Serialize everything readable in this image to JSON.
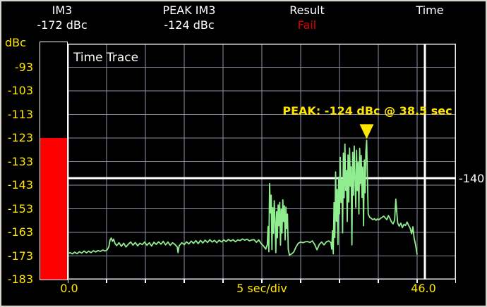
{
  "header": {
    "columns": [
      {
        "label": "IM3",
        "value": "-172 dBc",
        "status": "normal"
      },
      {
        "label": "PEAK IM3",
        "value": "-124 dBc",
        "status": "normal"
      },
      {
        "label": "Result",
        "value": "Fail",
        "status": "fail"
      },
      {
        "label": "Time",
        "value": "",
        "status": "normal"
      }
    ]
  },
  "y_axis": {
    "unit": "dBc",
    "labels": [
      "-93",
      "-103",
      "-113",
      "-123",
      "-133",
      "-143",
      "-153",
      "-163",
      "-173",
      "-183"
    ]
  },
  "x_axis": {
    "start": "0.0",
    "div_label": "5 sec/div",
    "end": "46.0"
  },
  "bar_meter": {
    "value_dbc": -124,
    "range_top": -83,
    "range_bottom": -183
  },
  "plot": {
    "title": "Time Trace",
    "limit_label": "-140",
    "limit_value": -140,
    "peak_annotation": "PEAK: -124 dBc @ 38.5 sec",
    "peak_time_sec": 38.5,
    "peak_value_dbc": -124,
    "cursor_time_sec": 46.0
  },
  "colors": {
    "bg": "#000000",
    "frame": "#d8d5cc",
    "yellow": "#ffe600",
    "trace_green": "#90ee90",
    "bar_red": "#ff0000",
    "fail_red": "#e00000",
    "grid": "#8a92a4",
    "white": "#ffffff"
  },
  "chart_data": {
    "type": "line",
    "title": "Time Trace",
    "xlabel": "5 sec/div",
    "ylabel": "dBc",
    "xlim": [
      0,
      50
    ],
    "ylim": [
      -183,
      -83
    ],
    "x_divisions": 10,
    "y_divisions": 10,
    "grid": true,
    "limit_line_dbc": -140,
    "points": [
      [
        0.0,
        -172.0
      ],
      [
        0.3,
        -171.6
      ],
      [
        0.6,
        -172.1
      ],
      [
        0.9,
        -171.4
      ],
      [
        1.2,
        -172.0
      ],
      [
        1.5,
        -171.2
      ],
      [
        1.8,
        -171.8
      ],
      [
        2.1,
        -170.9
      ],
      [
        2.4,
        -171.7
      ],
      [
        2.7,
        -171.0
      ],
      [
        3.0,
        -171.6
      ],
      [
        3.3,
        -170.8
      ],
      [
        3.6,
        -171.3
      ],
      [
        3.9,
        -170.7
      ],
      [
        4.2,
        -171.1
      ],
      [
        4.5,
        -170.5
      ],
      [
        4.8,
        -170.9
      ],
      [
        5.1,
        -170.3
      ],
      [
        5.3,
        -169.0
      ],
      [
        5.45,
        -166.2
      ],
      [
        5.6,
        -165.4
      ],
      [
        5.75,
        -166.8
      ],
      [
        5.9,
        -165.9
      ],
      [
        6.1,
        -167.8
      ],
      [
        6.3,
        -168.6
      ],
      [
        6.6,
        -167.4
      ],
      [
        6.9,
        -168.9
      ],
      [
        7.2,
        -167.6
      ],
      [
        7.5,
        -169.2
      ],
      [
        7.8,
        -168.0
      ],
      [
        8.1,
        -167.1
      ],
      [
        8.4,
        -168.4
      ],
      [
        8.7,
        -167.3
      ],
      [
        9.0,
        -168.7
      ],
      [
        9.3,
        -167.6
      ],
      [
        9.6,
        -168.2
      ],
      [
        9.9,
        -167.1
      ],
      [
        10.2,
        -168.5
      ],
      [
        10.5,
        -167.4
      ],
      [
        10.8,
        -168.8
      ],
      [
        11.1,
        -167.2
      ],
      [
        11.4,
        -168.1
      ],
      [
        11.7,
        -167.0
      ],
      [
        12.0,
        -168.0
      ],
      [
        12.3,
        -166.8
      ],
      [
        12.6,
        -168.3
      ],
      [
        12.9,
        -167.1
      ],
      [
        13.2,
        -168.5
      ],
      [
        13.5,
        -167.4
      ],
      [
        13.8,
        -168.1
      ],
      [
        14.1,
        -169.2
      ],
      [
        14.2,
        -171.6
      ],
      [
        14.35,
        -168.7
      ],
      [
        14.7,
        -167.4
      ],
      [
        15.0,
        -168.2
      ],
      [
        15.3,
        -167.0
      ],
      [
        15.6,
        -167.9
      ],
      [
        15.9,
        -166.7
      ],
      [
        16.2,
        -167.7
      ],
      [
        16.5,
        -166.5
      ],
      [
        16.8,
        -167.8
      ],
      [
        17.1,
        -166.4
      ],
      [
        17.4,
        -167.5
      ],
      [
        17.7,
        -166.3
      ],
      [
        18.0,
        -167.3
      ],
      [
        18.3,
        -166.1
      ],
      [
        18.6,
        -167.1
      ],
      [
        18.9,
        -166.4
      ],
      [
        19.2,
        -167.4
      ],
      [
        19.5,
        -166.3
      ],
      [
        19.8,
        -167.1
      ],
      [
        20.1,
        -166.2
      ],
      [
        20.4,
        -166.9
      ],
      [
        20.7,
        -166.0
      ],
      [
        21.0,
        -166.7
      ],
      [
        21.3,
        -166.1
      ],
      [
        21.6,
        -167.0
      ],
      [
        21.9,
        -166.2
      ],
      [
        22.2,
        -166.5
      ],
      [
        22.5,
        -165.8
      ],
      [
        22.8,
        -166.3
      ],
      [
        23.1,
        -165.9
      ],
      [
        23.4,
        -166.6
      ],
      [
        23.7,
        -166.2
      ],
      [
        24.0,
        -166.1
      ],
      [
        24.3,
        -167.2
      ],
      [
        24.6,
        -166.2
      ],
      [
        24.9,
        -167.7
      ],
      [
        25.2,
        -168.7
      ],
      [
        25.5,
        -170.1
      ],
      [
        25.7,
        -168.2
      ],
      [
        25.8,
        -160.5
      ],
      [
        25.9,
        -171.2
      ],
      [
        26.0,
        -142.3
      ],
      [
        26.1,
        -154.8
      ],
      [
        26.2,
        -147.2
      ],
      [
        26.3,
        -170.3
      ],
      [
        26.4,
        -152.5
      ],
      [
        26.5,
        -163.4
      ],
      [
        26.6,
        -149.6
      ],
      [
        26.7,
        -158.3
      ],
      [
        26.8,
        -171.6
      ],
      [
        26.9,
        -154.2
      ],
      [
        27.0,
        -165.3
      ],
      [
        27.1,
        -151.4
      ],
      [
        27.2,
        -160.2
      ],
      [
        27.3,
        -150.3
      ],
      [
        27.4,
        -168.4
      ],
      [
        27.5,
        -153.2
      ],
      [
        27.6,
        -163.3
      ],
      [
        27.7,
        -149.2
      ],
      [
        27.8,
        -158.4
      ],
      [
        27.9,
        -151.7
      ],
      [
        28.0,
        -166.2
      ],
      [
        28.1,
        -152.3
      ],
      [
        28.2,
        -161.4
      ],
      [
        28.3,
        -155.3
      ],
      [
        28.4,
        -170.2
      ],
      [
        28.55,
        -172.6
      ],
      [
        28.8,
        -172.2
      ],
      [
        29.1,
        -171.4
      ],
      [
        29.4,
        -169.2
      ],
      [
        29.7,
        -167.6
      ],
      [
        30.0,
        -167.1
      ],
      [
        30.3,
        -167.4
      ],
      [
        30.6,
        -167.0
      ],
      [
        30.9,
        -166.9
      ],
      [
        31.2,
        -167.3
      ],
      [
        31.5,
        -166.6
      ],
      [
        31.8,
        -168.1
      ],
      [
        32.1,
        -170.4
      ],
      [
        32.4,
        -168.1
      ],
      [
        32.7,
        -167.1
      ],
      [
        33.0,
        -168.3
      ],
      [
        33.3,
        -167.1
      ],
      [
        33.6,
        -166.6
      ],
      [
        33.9,
        -167.4
      ],
      [
        34.0,
        -170.1
      ],
      [
        34.1,
        -162.3
      ],
      [
        34.2,
        -172.1
      ],
      [
        34.3,
        -150.4
      ],
      [
        34.4,
        -165.2
      ],
      [
        34.5,
        -137.4
      ],
      [
        34.6,
        -158.3
      ],
      [
        34.7,
        -144.8
      ],
      [
        34.8,
        -168.2
      ],
      [
        34.9,
        -139.6
      ],
      [
        35.0,
        -155.2
      ],
      [
        35.1,
        -131.2
      ],
      [
        35.2,
        -150.3
      ],
      [
        35.3,
        -140.8
      ],
      [
        35.4,
        -163.2
      ],
      [
        35.5,
        -129.4
      ],
      [
        35.6,
        -148.3
      ],
      [
        35.7,
        -125.6
      ],
      [
        35.8,
        -145.2
      ],
      [
        35.9,
        -136.8
      ],
      [
        36.0,
        -158.4
      ],
      [
        36.1,
        -130.2
      ],
      [
        36.2,
        -150.1
      ],
      [
        36.3,
        -127.3
      ],
      [
        36.4,
        -143.4
      ],
      [
        36.5,
        -135.2
      ],
      [
        36.6,
        -168.3
      ],
      [
        36.7,
        -129.1
      ],
      [
        36.8,
        -147.2
      ],
      [
        36.9,
        -126.4
      ],
      [
        37.0,
        -140.3
      ],
      [
        37.1,
        -152.4
      ],
      [
        37.2,
        -128.2
      ],
      [
        37.3,
        -145.3
      ],
      [
        37.4,
        -133.4
      ],
      [
        37.5,
        -155.2
      ],
      [
        37.6,
        -127.4
      ],
      [
        37.7,
        -142.3
      ],
      [
        37.8,
        -130.4
      ],
      [
        37.9,
        -148.2
      ],
      [
        38.0,
        -135.3
      ],
      [
        38.1,
        -160.2
      ],
      [
        38.2,
        -132.3
      ],
      [
        38.3,
        -146.2
      ],
      [
        38.4,
        -128.4
      ],
      [
        38.5,
        -124.0
      ],
      [
        38.6,
        -140.2
      ],
      [
        38.7,
        -155.3
      ],
      [
        38.9,
        -156.6
      ],
      [
        39.1,
        -157.1
      ],
      [
        39.3,
        -157.6
      ],
      [
        39.5,
        -157.2
      ],
      [
        39.7,
        -157.9
      ],
      [
        39.9,
        -157.3
      ],
      [
        40.1,
        -157.6
      ],
      [
        40.3,
        -157.0
      ],
      [
        40.5,
        -156.6
      ],
      [
        40.7,
        -156.1
      ],
      [
        40.9,
        -156.9
      ],
      [
        41.1,
        -157.6
      ],
      [
        41.3,
        -155.9
      ],
      [
        41.5,
        -157.1
      ],
      [
        41.7,
        -158.6
      ],
      [
        41.9,
        -159.4
      ],
      [
        42.1,
        -157.9
      ],
      [
        42.25,
        -148.9
      ],
      [
        42.4,
        -155.3
      ],
      [
        42.5,
        -159.1
      ],
      [
        42.7,
        -160.4
      ],
      [
        42.9,
        -159.1
      ],
      [
        43.1,
        -161.0
      ],
      [
        43.3,
        -159.6
      ],
      [
        43.5,
        -160.1
      ],
      [
        43.7,
        -158.6
      ],
      [
        43.9,
        -160.0
      ],
      [
        44.1,
        -161.2
      ],
      [
        44.3,
        -163.6
      ],
      [
        44.45,
        -160.6
      ],
      [
        44.6,
        -165.1
      ],
      [
        44.8,
        -168.3
      ],
      [
        45.0,
        -172.4
      ]
    ]
  }
}
